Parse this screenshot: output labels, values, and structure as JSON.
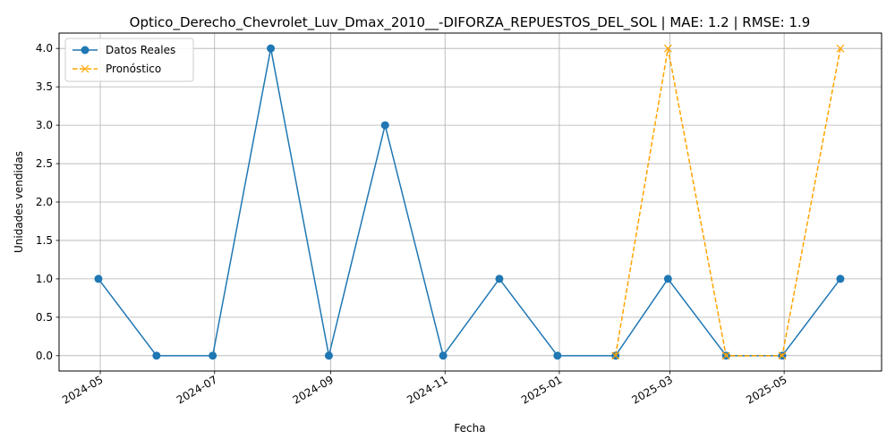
{
  "chart_data": {
    "type": "line",
    "title": "Optico_Derecho_Chevrolet_Luv_Dmax_2010__-DIFORZA_REPUESTOS_DEL_SOL | MAE: 1.2 | RMSE: 1.9",
    "xlabel": "Fecha",
    "ylabel": "Unidades vendidas",
    "ylim": [
      -0.2,
      4.2
    ],
    "xlim": [
      "2024-04-09",
      "2025-06-22"
    ],
    "grid": true,
    "legend_position": "top-left",
    "x_tick_labels": [
      "2024-05",
      "2024-07",
      "2024-09",
      "2024-11",
      "2025-01",
      "2025-03",
      "2025-05"
    ],
    "x_ticks": [
      "2024-05-01",
      "2024-07-01",
      "2024-09-01",
      "2024-11-01",
      "2025-01-01",
      "2025-03-01",
      "2025-05-01"
    ],
    "y_ticks": [
      0.0,
      0.5,
      1.0,
      1.5,
      2.0,
      2.5,
      3.0,
      3.5,
      4.0
    ],
    "y_tick_labels": [
      "0.0",
      "0.5",
      "1.0",
      "1.5",
      "2.0",
      "2.5",
      "3.0",
      "3.5",
      "4.0"
    ],
    "series": [
      {
        "name": "Datos Reales",
        "color": "#1f77b4",
        "marker": "circle",
        "line_style": "solid",
        "x": [
          "2024-04-30",
          "2024-05-31",
          "2024-06-30",
          "2024-07-31",
          "2024-08-31",
          "2024-09-30",
          "2024-10-31",
          "2024-11-30",
          "2024-12-31",
          "2025-01-31",
          "2025-02-28",
          "2025-03-31",
          "2025-04-30",
          "2025-05-31"
        ],
        "values": [
          1,
          0,
          0,
          4,
          0,
          3,
          0,
          1,
          0,
          0,
          1,
          0,
          0,
          1
        ]
      },
      {
        "name": "Pronóstico",
        "color": "#ffa500",
        "marker": "x",
        "line_style": "dashed",
        "x": [
          "2025-01-31",
          "2025-02-28",
          "2025-03-31",
          "2025-04-30",
          "2025-05-31"
        ],
        "values": [
          0,
          4,
          0,
          0,
          4
        ]
      }
    ]
  }
}
